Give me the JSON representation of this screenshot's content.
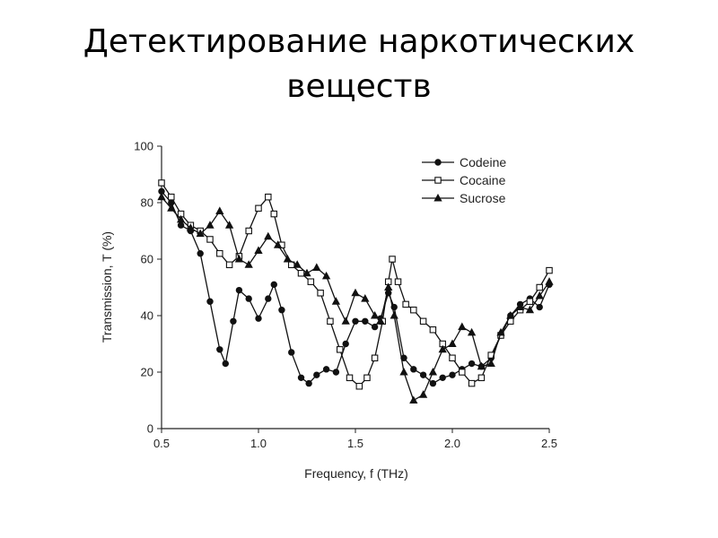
{
  "slide": {
    "title_line1": "Детектирование наркотических",
    "title_line2": "веществ"
  },
  "chart_data": {
    "type": "line",
    "xlabel": "Frequency, f  (THz)",
    "ylabel": "Transmission, T  (%)",
    "xlim": [
      0.5,
      2.5
    ],
    "ylim": [
      0,
      100
    ],
    "xticks": [
      0.5,
      1.0,
      1.5,
      2.0,
      2.5
    ],
    "xtick_labels": [
      "0.5",
      "1.0",
      "1.5",
      "2.0",
      "2.5"
    ],
    "yticks": [
      0,
      20,
      40,
      60,
      80,
      100
    ],
    "ytick_labels": [
      "0",
      "20",
      "40",
      "60",
      "80",
      "100"
    ],
    "grid": false,
    "legend": "top-right",
    "series": [
      {
        "name": "Codeine",
        "marker": "filled-circle",
        "color": "#111111",
        "x": [
          0.5,
          0.55,
          0.6,
          0.65,
          0.7,
          0.75,
          0.8,
          0.83,
          0.87,
          0.9,
          0.95,
          1.0,
          1.05,
          1.08,
          1.12,
          1.17,
          1.22,
          1.26,
          1.3,
          1.35,
          1.4,
          1.45,
          1.5,
          1.55,
          1.6,
          1.63,
          1.67,
          1.7,
          1.75,
          1.8,
          1.85,
          1.9,
          1.95,
          2.0,
          2.05,
          2.1,
          2.15,
          2.2,
          2.25,
          2.3,
          2.35,
          2.4,
          2.45,
          2.5
        ],
        "y": [
          84,
          80,
          72,
          70,
          62,
          45,
          28,
          23,
          38,
          49,
          46,
          39,
          46,
          51,
          42,
          27,
          18,
          16,
          19,
          21,
          20,
          30,
          38,
          38,
          36,
          39,
          48,
          43,
          25,
          21,
          19,
          16,
          18,
          19,
          21,
          23,
          22,
          25,
          33,
          40,
          44,
          46,
          43,
          51
        ]
      },
      {
        "name": "Cocaine",
        "marker": "open-square",
        "color": "#111111",
        "x": [
          0.5,
          0.55,
          0.6,
          0.65,
          0.7,
          0.75,
          0.8,
          0.85,
          0.9,
          0.95,
          1.0,
          1.05,
          1.08,
          1.12,
          1.17,
          1.22,
          1.27,
          1.32,
          1.37,
          1.42,
          1.47,
          1.52,
          1.56,
          1.6,
          1.64,
          1.67,
          1.69,
          1.72,
          1.76,
          1.8,
          1.85,
          1.9,
          1.95,
          2.0,
          2.05,
          2.1,
          2.15,
          2.2,
          2.25,
          2.3,
          2.35,
          2.4,
          2.45,
          2.5
        ],
        "y": [
          87,
          82,
          76,
          72,
          70,
          67,
          62,
          58,
          61,
          70,
          78,
          82,
          76,
          65,
          58,
          55,
          52,
          48,
          38,
          28,
          18,
          15,
          18,
          25,
          38,
          52,
          60,
          52,
          44,
          42,
          38,
          35,
          30,
          25,
          20,
          16,
          18,
          26,
          33,
          38,
          42,
          45,
          50,
          56
        ]
      },
      {
        "name": "Sucrose",
        "marker": "filled-triangle",
        "color": "#111111",
        "x": [
          0.5,
          0.55,
          0.6,
          0.65,
          0.7,
          0.75,
          0.8,
          0.85,
          0.9,
          0.95,
          1.0,
          1.05,
          1.1,
          1.15,
          1.2,
          1.25,
          1.3,
          1.35,
          1.4,
          1.45,
          1.5,
          1.55,
          1.6,
          1.63,
          1.67,
          1.7,
          1.75,
          1.8,
          1.85,
          1.9,
          1.95,
          2.0,
          2.05,
          2.1,
          2.15,
          2.2,
          2.25,
          2.3,
          2.35,
          2.4,
          2.45,
          2.5
        ],
        "y": [
          82,
          78,
          74,
          71,
          69,
          72,
          77,
          72,
          60,
          58,
          63,
          68,
          65,
          60,
          58,
          55,
          57,
          54,
          45,
          38,
          48,
          46,
          40,
          38,
          50,
          40,
          20,
          10,
          12,
          20,
          28,
          30,
          36,
          34,
          22,
          23,
          34,
          40,
          43,
          42,
          47,
          52
        ]
      }
    ]
  }
}
